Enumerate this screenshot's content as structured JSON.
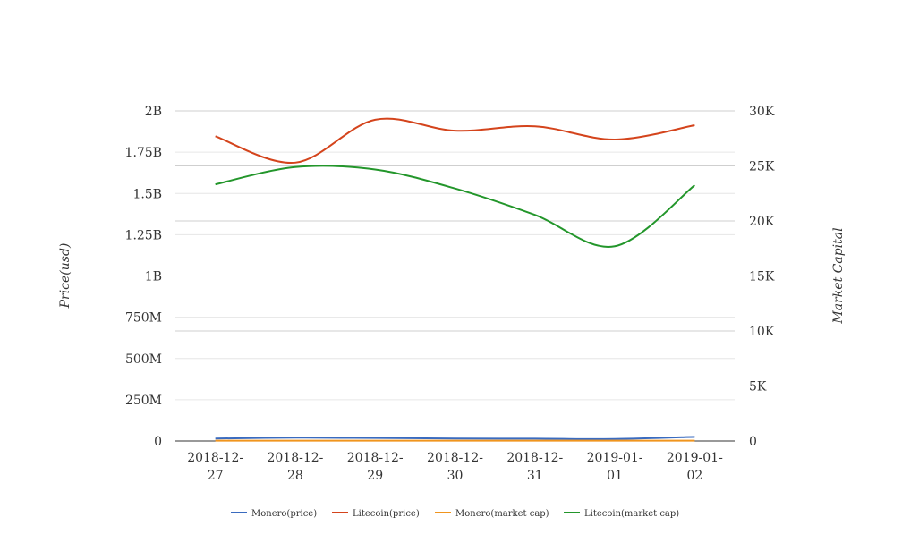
{
  "chart_data": {
    "type": "line",
    "categories": [
      [
        "2018-12-",
        "27"
      ],
      [
        "2018-12-",
        "28"
      ],
      [
        "2018-12-",
        "29"
      ],
      [
        "2018-12-",
        "30"
      ],
      [
        "2018-12-",
        "31"
      ],
      [
        "2019-01-",
        "01"
      ],
      [
        "2019-01-",
        "02"
      ]
    ],
    "ylabel_left": "Price(usd)",
    "ylabel_right": "Market Capital",
    "ylim_left": [
      0,
      2000000000
    ],
    "ylim_right": [
      0,
      30000
    ],
    "left_ticks": [
      {
        "value": 0,
        "label": "0"
      },
      {
        "value": 250000000,
        "label": "250M"
      },
      {
        "value": 500000000,
        "label": "500M"
      },
      {
        "value": 750000000,
        "label": "750M"
      },
      {
        "value": 1000000000,
        "label": "1B"
      },
      {
        "value": 1250000000,
        "label": "1.25B"
      },
      {
        "value": 1500000000,
        "label": "1.5B"
      },
      {
        "value": 1750000000,
        "label": "1.75B"
      },
      {
        "value": 2000000000,
        "label": "2B"
      }
    ],
    "right_ticks": [
      {
        "value": 0,
        "label": "0"
      },
      {
        "value": 5000,
        "label": "5K"
      },
      {
        "value": 10000,
        "label": "10K"
      },
      {
        "value": 15000,
        "label": "15K"
      },
      {
        "value": 20000,
        "label": "20K"
      },
      {
        "value": 25000,
        "label": "25K"
      },
      {
        "value": 30000,
        "label": "30K"
      }
    ],
    "series": [
      {
        "name": "Monero(price)",
        "axis": "left",
        "color": "#3a6bbf",
        "values": [
          15000000,
          20000000,
          18000000,
          15000000,
          14000000,
          12000000,
          25000000
        ]
      },
      {
        "name": "Litecoin(price)",
        "axis": "right",
        "color": "#d4441c",
        "values": [
          27700,
          25300,
          29200,
          28200,
          28600,
          27400,
          28700
        ]
      },
      {
        "name": "Monero(market cap)",
        "axis": "left",
        "color": "#f0951e",
        "values": [
          2000000,
          2000000,
          2000000,
          2000000,
          2000000,
          2000000,
          2000000
        ]
      },
      {
        "name": "Litecoin(market cap)",
        "axis": "left",
        "color": "#23962b",
        "values": [
          1555000000,
          1660000000,
          1645000000,
          1530000000,
          1370000000,
          1180000000,
          1550000000
        ]
      }
    ],
    "grid": true,
    "legend": "bottom"
  }
}
